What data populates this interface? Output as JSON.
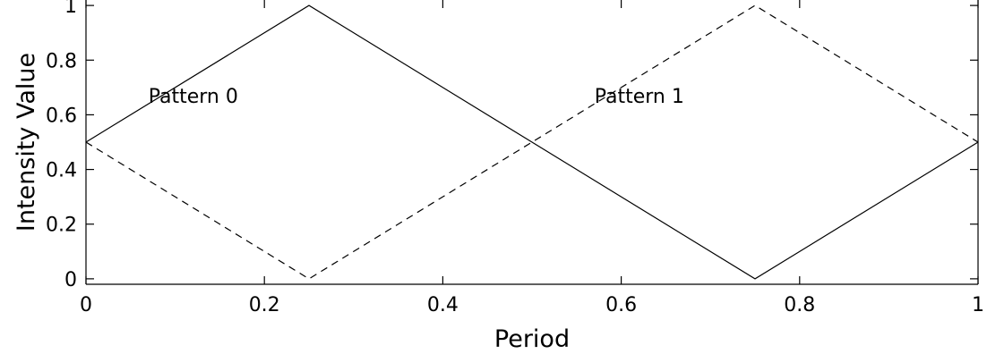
{
  "chart_data": {
    "type": "line",
    "xlabel": "Period",
    "ylabel": "Intensity Value",
    "xlim": [
      0,
      1
    ],
    "ylim": [
      -0.02,
      1.02
    ],
    "x_ticks": [
      "0",
      "0.2",
      "0.4",
      "0.6",
      "0.8",
      "1"
    ],
    "y_ticks": [
      "0",
      "0.2",
      "0.4",
      "0.6",
      "0.8",
      "1"
    ],
    "grid": false,
    "series": [
      {
        "x": [
          0,
          0.25,
          0.75,
          1
        ],
        "y": [
          0.5,
          1,
          0,
          0.5
        ],
        "line_style": "solid",
        "color": "#000000"
      },
      {
        "x": [
          0,
          0.25,
          0.75,
          1
        ],
        "y": [
          0.5,
          0,
          1,
          0.5
        ],
        "line_style": "dashed",
        "color": "#000000"
      }
    ],
    "annotations": [
      {
        "text": "Pattern 0",
        "x": 0.07,
        "y": 0.67
      },
      {
        "text": "Pattern 1",
        "x": 0.57,
        "y": 0.67
      }
    ]
  }
}
